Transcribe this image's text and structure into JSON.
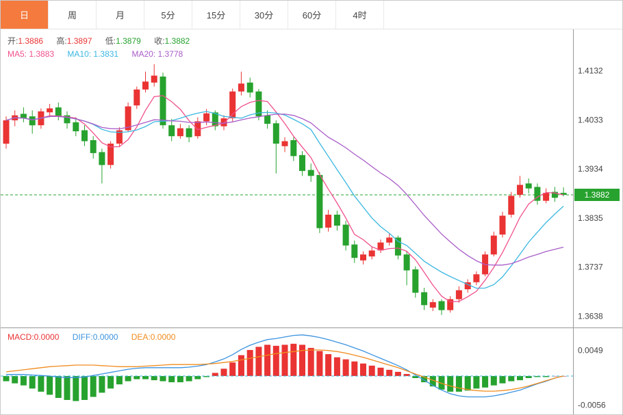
{
  "toolbar": {
    "tabs": [
      {
        "label": "日",
        "active": true
      },
      {
        "label": "周",
        "active": false
      },
      {
        "label": "月",
        "active": false
      },
      {
        "label": "5分",
        "active": false
      },
      {
        "label": "15分",
        "active": false
      },
      {
        "label": "30分",
        "active": false
      },
      {
        "label": "60分",
        "active": false
      },
      {
        "label": "4时",
        "active": false
      }
    ]
  },
  "info": {
    "open_label": "开:",
    "open_value": "1.3886",
    "high_label": "高:",
    "high_value": "1.3897",
    "low_label": "低:",
    "low_value": "1.3879",
    "close_label": "收:",
    "close_value": "1.3882",
    "ma5_label": "MA5: ",
    "ma5_value": "1.3883",
    "ma10_label": "MA10: ",
    "ma10_value": "1.3831",
    "ma20_label": "MA20: ",
    "ma20_value": "1.3778",
    "macd_label": "MACD:",
    "macd_value": "0.0000",
    "diff_label": "DIFF:",
    "diff_value": "0.0000",
    "dea_label": "DEA:",
    "dea_value": "0.0000"
  },
  "colors": {
    "up": "#ea3333",
    "down": "#27a22e",
    "ma5": "#f0508c",
    "ma10": "#3ab7e0",
    "ma20": "#a85cc8",
    "diff": "#3b93e0",
    "dea": "#f08c1e",
    "tab_active_bg": "#f57a3d",
    "price_tag_bg": "#27a22e",
    "axis_text": "#444",
    "frame": "#999"
  },
  "chart_data": {
    "type": "candlestick+macd",
    "title": "",
    "legend": [
      "MA5",
      "MA10",
      "MA20",
      "MACD",
      "DIFF",
      "DEA"
    ],
    "main": {
      "price_top": 1.4215,
      "price_bottom": 1.3615,
      "axis_labels": [
        1.4132,
        1.4033,
        1.3934,
        1.3835,
        1.3737,
        1.3638
      ],
      "current_price": 1.3882,
      "ma_periods": [
        5,
        10,
        20
      ],
      "candles": [
        [
          1.3985,
          1.404,
          1.3975,
          1.4032
        ],
        [
          1.4032,
          1.4052,
          1.402,
          1.4042
        ],
        [
          1.4045,
          1.4058,
          1.4028,
          1.4036
        ],
        [
          1.404,
          1.4052,
          1.4005,
          1.4022
        ],
        [
          1.4022,
          1.4056,
          1.4015,
          1.405
        ],
        [
          1.4048,
          1.4065,
          1.4038,
          1.4056
        ],
        [
          1.4058,
          1.4068,
          1.4032,
          1.404
        ],
        [
          1.4042,
          1.405,
          1.4015,
          1.4026
        ],
        [
          1.4028,
          1.4038,
          1.4,
          1.401
        ],
        [
          1.4012,
          1.4022,
          1.398,
          1.399
        ],
        [
          1.3992,
          1.4,
          1.3955,
          1.3966
        ],
        [
          1.3968,
          1.3975,
          1.3905,
          1.3942
        ],
        [
          1.3942,
          1.399,
          1.3935,
          1.3985
        ],
        [
          1.3985,
          1.4018,
          1.3978,
          1.4012
        ],
        [
          1.4012,
          1.4068,
          1.4008,
          1.406
        ],
        [
          1.4062,
          1.41,
          1.4055,
          1.4094
        ],
        [
          1.4094,
          1.413,
          1.4088,
          1.411
        ],
        [
          1.4108,
          1.4145,
          1.41,
          1.4122
        ],
        [
          1.412,
          1.4128,
          1.4015,
          1.4022
        ],
        [
          1.4022,
          1.4035,
          1.399,
          1.4
        ],
        [
          1.4,
          1.4025,
          1.3995,
          1.4016
        ],
        [
          1.4016,
          1.4022,
          1.3988,
          1.3998
        ],
        [
          1.4,
          1.4038,
          1.3995,
          1.403
        ],
        [
          1.403,
          1.4055,
          1.4022,
          1.4046
        ],
        [
          1.4048,
          1.4052,
          1.4012,
          1.402
        ],
        [
          1.402,
          1.4042,
          1.4012,
          1.4036
        ],
        [
          1.4036,
          1.4096,
          1.403,
          1.409
        ],
        [
          1.409,
          1.413,
          1.4082,
          1.4106
        ],
        [
          1.4108,
          1.4118,
          1.4078,
          1.4088
        ],
        [
          1.409,
          1.4095,
          1.4032,
          1.404
        ],
        [
          1.4042,
          1.4052,
          1.4015,
          1.4025
        ],
        [
          1.4026,
          1.4032,
          1.3925,
          1.3985
        ],
        [
          1.398,
          1.3998,
          1.3968,
          1.399
        ],
        [
          1.3992,
          1.3998,
          1.395,
          1.396
        ],
        [
          1.3962,
          1.397,
          1.392,
          1.393
        ],
        [
          1.3932,
          1.3945,
          1.3908,
          1.392
        ],
        [
          1.3922,
          1.3928,
          1.3805,
          1.3815
        ],
        [
          1.3816,
          1.3852,
          1.3808,
          1.3842
        ],
        [
          1.3842,
          1.385,
          1.381,
          1.382
        ],
        [
          1.3822,
          1.383,
          1.377,
          1.378
        ],
        [
          1.3782,
          1.379,
          1.3745,
          1.3755
        ],
        [
          1.375,
          1.3768,
          1.3742,
          1.3762
        ],
        [
          1.3758,
          1.3778,
          1.3752,
          1.377
        ],
        [
          1.377,
          1.3792,
          1.3765,
          1.3786
        ],
        [
          1.3786,
          1.3805,
          1.378,
          1.3796
        ],
        [
          1.3796,
          1.38,
          1.3752,
          1.376
        ],
        [
          1.3762,
          1.3768,
          1.37,
          1.373
        ],
        [
          1.3732,
          1.3738,
          1.3675,
          1.3685
        ],
        [
          1.3686,
          1.3695,
          1.365,
          1.366
        ],
        [
          1.3655,
          1.3672,
          1.3648,
          1.3666
        ],
        [
          1.3668,
          1.3672,
          1.364,
          1.365
        ],
        [
          1.365,
          1.3678,
          1.3645,
          1.3672
        ],
        [
          1.3672,
          1.3698,
          1.3665,
          1.369
        ],
        [
          1.3692,
          1.3712,
          1.3685,
          1.3706
        ],
        [
          1.3706,
          1.3728,
          1.37,
          1.3722
        ],
        [
          1.3722,
          1.3768,
          1.3718,
          1.3762
        ],
        [
          1.3762,
          1.3808,
          1.3758,
          1.38
        ],
        [
          1.3802,
          1.3848,
          1.3796,
          1.384
        ],
        [
          1.3842,
          1.3888,
          1.3836,
          1.388
        ],
        [
          1.3882,
          1.392,
          1.3876,
          1.3902
        ],
        [
          1.3905,
          1.3915,
          1.3885,
          1.3895
        ],
        [
          1.3898,
          1.3905,
          1.3862,
          1.387
        ],
        [
          1.387,
          1.3895,
          1.3865,
          1.3886
        ],
        [
          1.3888,
          1.3898,
          1.3868,
          1.3876
        ],
        [
          1.3886,
          1.3897,
          1.3879,
          1.3882
        ]
      ]
    },
    "macd": {
      "axis_labels": [
        0.0049,
        -0.0056
      ],
      "hist_rule": "hist = 2*(diff-dea)",
      "diff": [
        0.0003,
        0.0003,
        0.0003,
        0.0002,
        0.0001,
        0.0,
        -0.0002,
        -0.0003,
        -0.0003,
        -0.0002,
        0.0001,
        0.0004,
        0.0007,
        0.001,
        0.0013,
        0.0015,
        0.0016,
        0.0016,
        0.0016,
        0.0016,
        0.0016,
        0.0017,
        0.0019,
        0.0022,
        0.0027,
        0.0033,
        0.0041,
        0.0051,
        0.0059,
        0.0065,
        0.007,
        0.0072,
        0.0075,
        0.0078,
        0.0079,
        0.0077,
        0.0074,
        0.007,
        0.0065,
        0.006,
        0.0054,
        0.0048,
        0.0041,
        0.0034,
        0.0027,
        0.002,
        0.0012,
        0.0002,
        -0.0008,
        -0.0018,
        -0.0027,
        -0.0034,
        -0.0038,
        -0.004,
        -0.004,
        -0.004,
        -0.0038,
        -0.0035,
        -0.0031,
        -0.0027,
        -0.0021,
        -0.0015,
        -0.001,
        -0.0004,
        0.0
      ],
      "dea": [
        0.0008,
        0.001,
        0.0012,
        0.0014,
        0.0016,
        0.0018,
        0.0019,
        0.002,
        0.0021,
        0.0021,
        0.0021,
        0.002,
        0.0019,
        0.0018,
        0.0018,
        0.0018,
        0.0019,
        0.002,
        0.0021,
        0.0022,
        0.0022,
        0.0022,
        0.0022,
        0.0023,
        0.0024,
        0.0026,
        0.0028,
        0.0031,
        0.0034,
        0.0037,
        0.004,
        0.0043,
        0.0045,
        0.0047,
        0.0049,
        0.005,
        0.005,
        0.0049,
        0.0047,
        0.0044,
        0.004,
        0.0036,
        0.0031,
        0.0026,
        0.0021,
        0.0016,
        0.001,
        0.0004,
        -0.0002,
        -0.0008,
        -0.0014,
        -0.0019,
        -0.0023,
        -0.0026,
        -0.0028,
        -0.0029,
        -0.0029,
        -0.0028,
        -0.0026,
        -0.0023,
        -0.0019,
        -0.0014,
        -0.0009,
        -0.0004,
        0.0
      ]
    }
  }
}
